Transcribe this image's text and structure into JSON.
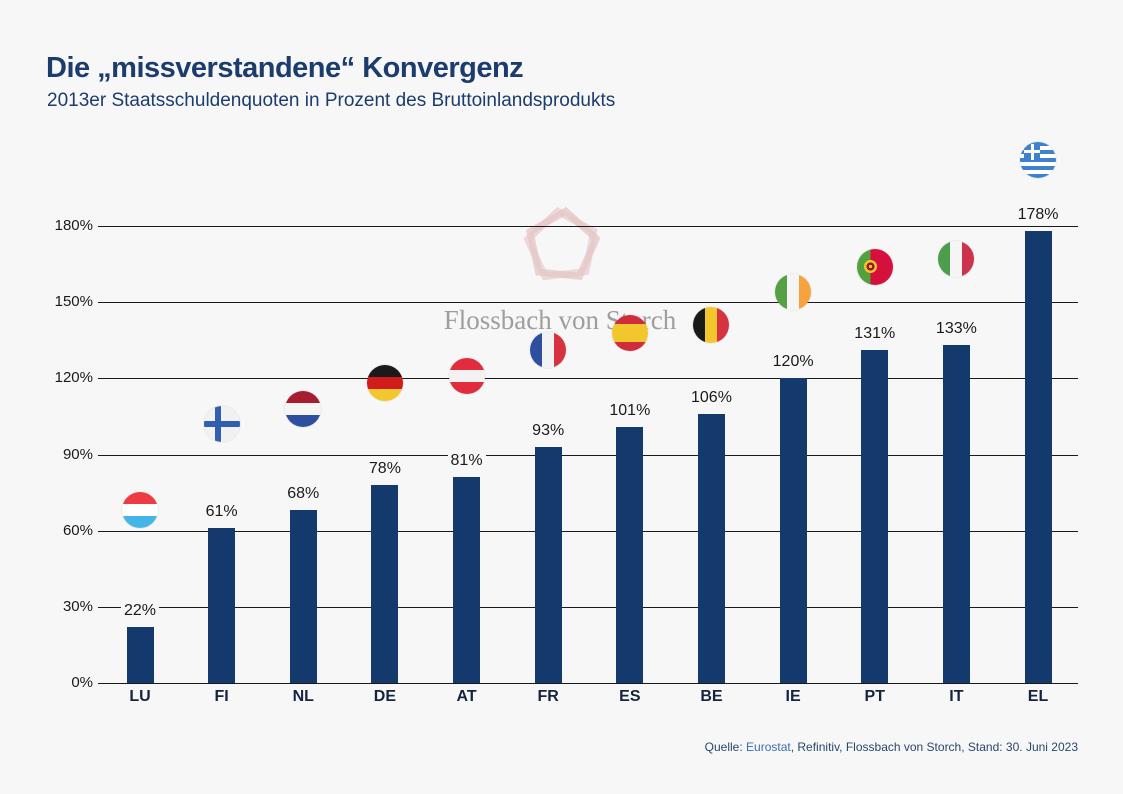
{
  "page": {
    "background": "#f7f7f7"
  },
  "header": {
    "title": "Die „missverstandene“ Konvergenz",
    "subtitle": "2013er Staatsschuldenquoten in Prozent des Bruttoinlandsprodukts"
  },
  "watermark": {
    "text": "Flossbach von Storch",
    "logo_icon": "pentagon-logo-icon"
  },
  "source": {
    "label": "Quelle:",
    "link": "Eurostat",
    "rest": ", Refinitiv, Flossbach von Storch, Stand: 30. Juni 2023"
  },
  "colors": {
    "background": "#f7f7f7",
    "bar": "#143a6d",
    "title": "#1d3c6e",
    "gridline": "#1a1a1a",
    "axis_text": "#1a1a1a",
    "category_text": "#15243f",
    "watermark_text": "#9e9e9e",
    "watermark_logo": "#d49c9c",
    "source_text": "#29476b",
    "source_link": "#3a6cb5"
  },
  "chart_data": {
    "type": "bar",
    "title": "Die „missverstandene“ Konvergenz",
    "subtitle": "2013er Staatsschuldenquoten in Prozent des Bruttoinlandsprodukts",
    "xlabel": "",
    "ylabel": "",
    "unit": "%",
    "ylim": [
      0,
      180
    ],
    "yticks": [
      0,
      30,
      60,
      90,
      120,
      150,
      180
    ],
    "ytick_labels": [
      "0%",
      "30%",
      "60%",
      "90%",
      "120%",
      "150%",
      "180%"
    ],
    "grid": true,
    "legend": "none",
    "categories": [
      "LU",
      "FI",
      "NL",
      "DE",
      "AT",
      "FR",
      "ES",
      "BE",
      "IE",
      "PT",
      "IT",
      "EL"
    ],
    "values": [
      22,
      61,
      68,
      78,
      81,
      93,
      101,
      106,
      120,
      131,
      133,
      178
    ],
    "value_labels": [
      "22%",
      "61%",
      "68%",
      "78%",
      "81%",
      "93%",
      "101%",
      "106%",
      "120%",
      "131%",
      "133%",
      "178%"
    ],
    "flags": [
      {
        "code": "lu",
        "icon": "flag-lu-icon",
        "level_pct": 68
      },
      {
        "code": "fi",
        "icon": "flag-fi-icon",
        "level_pct": 102
      },
      {
        "code": "nl",
        "icon": "flag-nl-icon",
        "level_pct": 108
      },
      {
        "code": "de",
        "icon": "flag-de-icon",
        "level_pct": 118
      },
      {
        "code": "at",
        "icon": "flag-at-icon",
        "level_pct": 121
      },
      {
        "code": "fr",
        "icon": "flag-fr-icon",
        "level_pct": 131
      },
      {
        "code": "es",
        "icon": "flag-es-icon",
        "level_pct": 138
      },
      {
        "code": "be",
        "icon": "flag-be-icon",
        "level_pct": 141
      },
      {
        "code": "ie",
        "icon": "flag-ie-icon",
        "level_pct": 154
      },
      {
        "code": "pt",
        "icon": "flag-pt-icon",
        "level_pct": 164
      },
      {
        "code": "it",
        "icon": "flag-it-icon",
        "level_pct": 167
      },
      {
        "code": "el",
        "icon": "flag-el-icon",
        "level_pct": 206
      }
    ]
  }
}
